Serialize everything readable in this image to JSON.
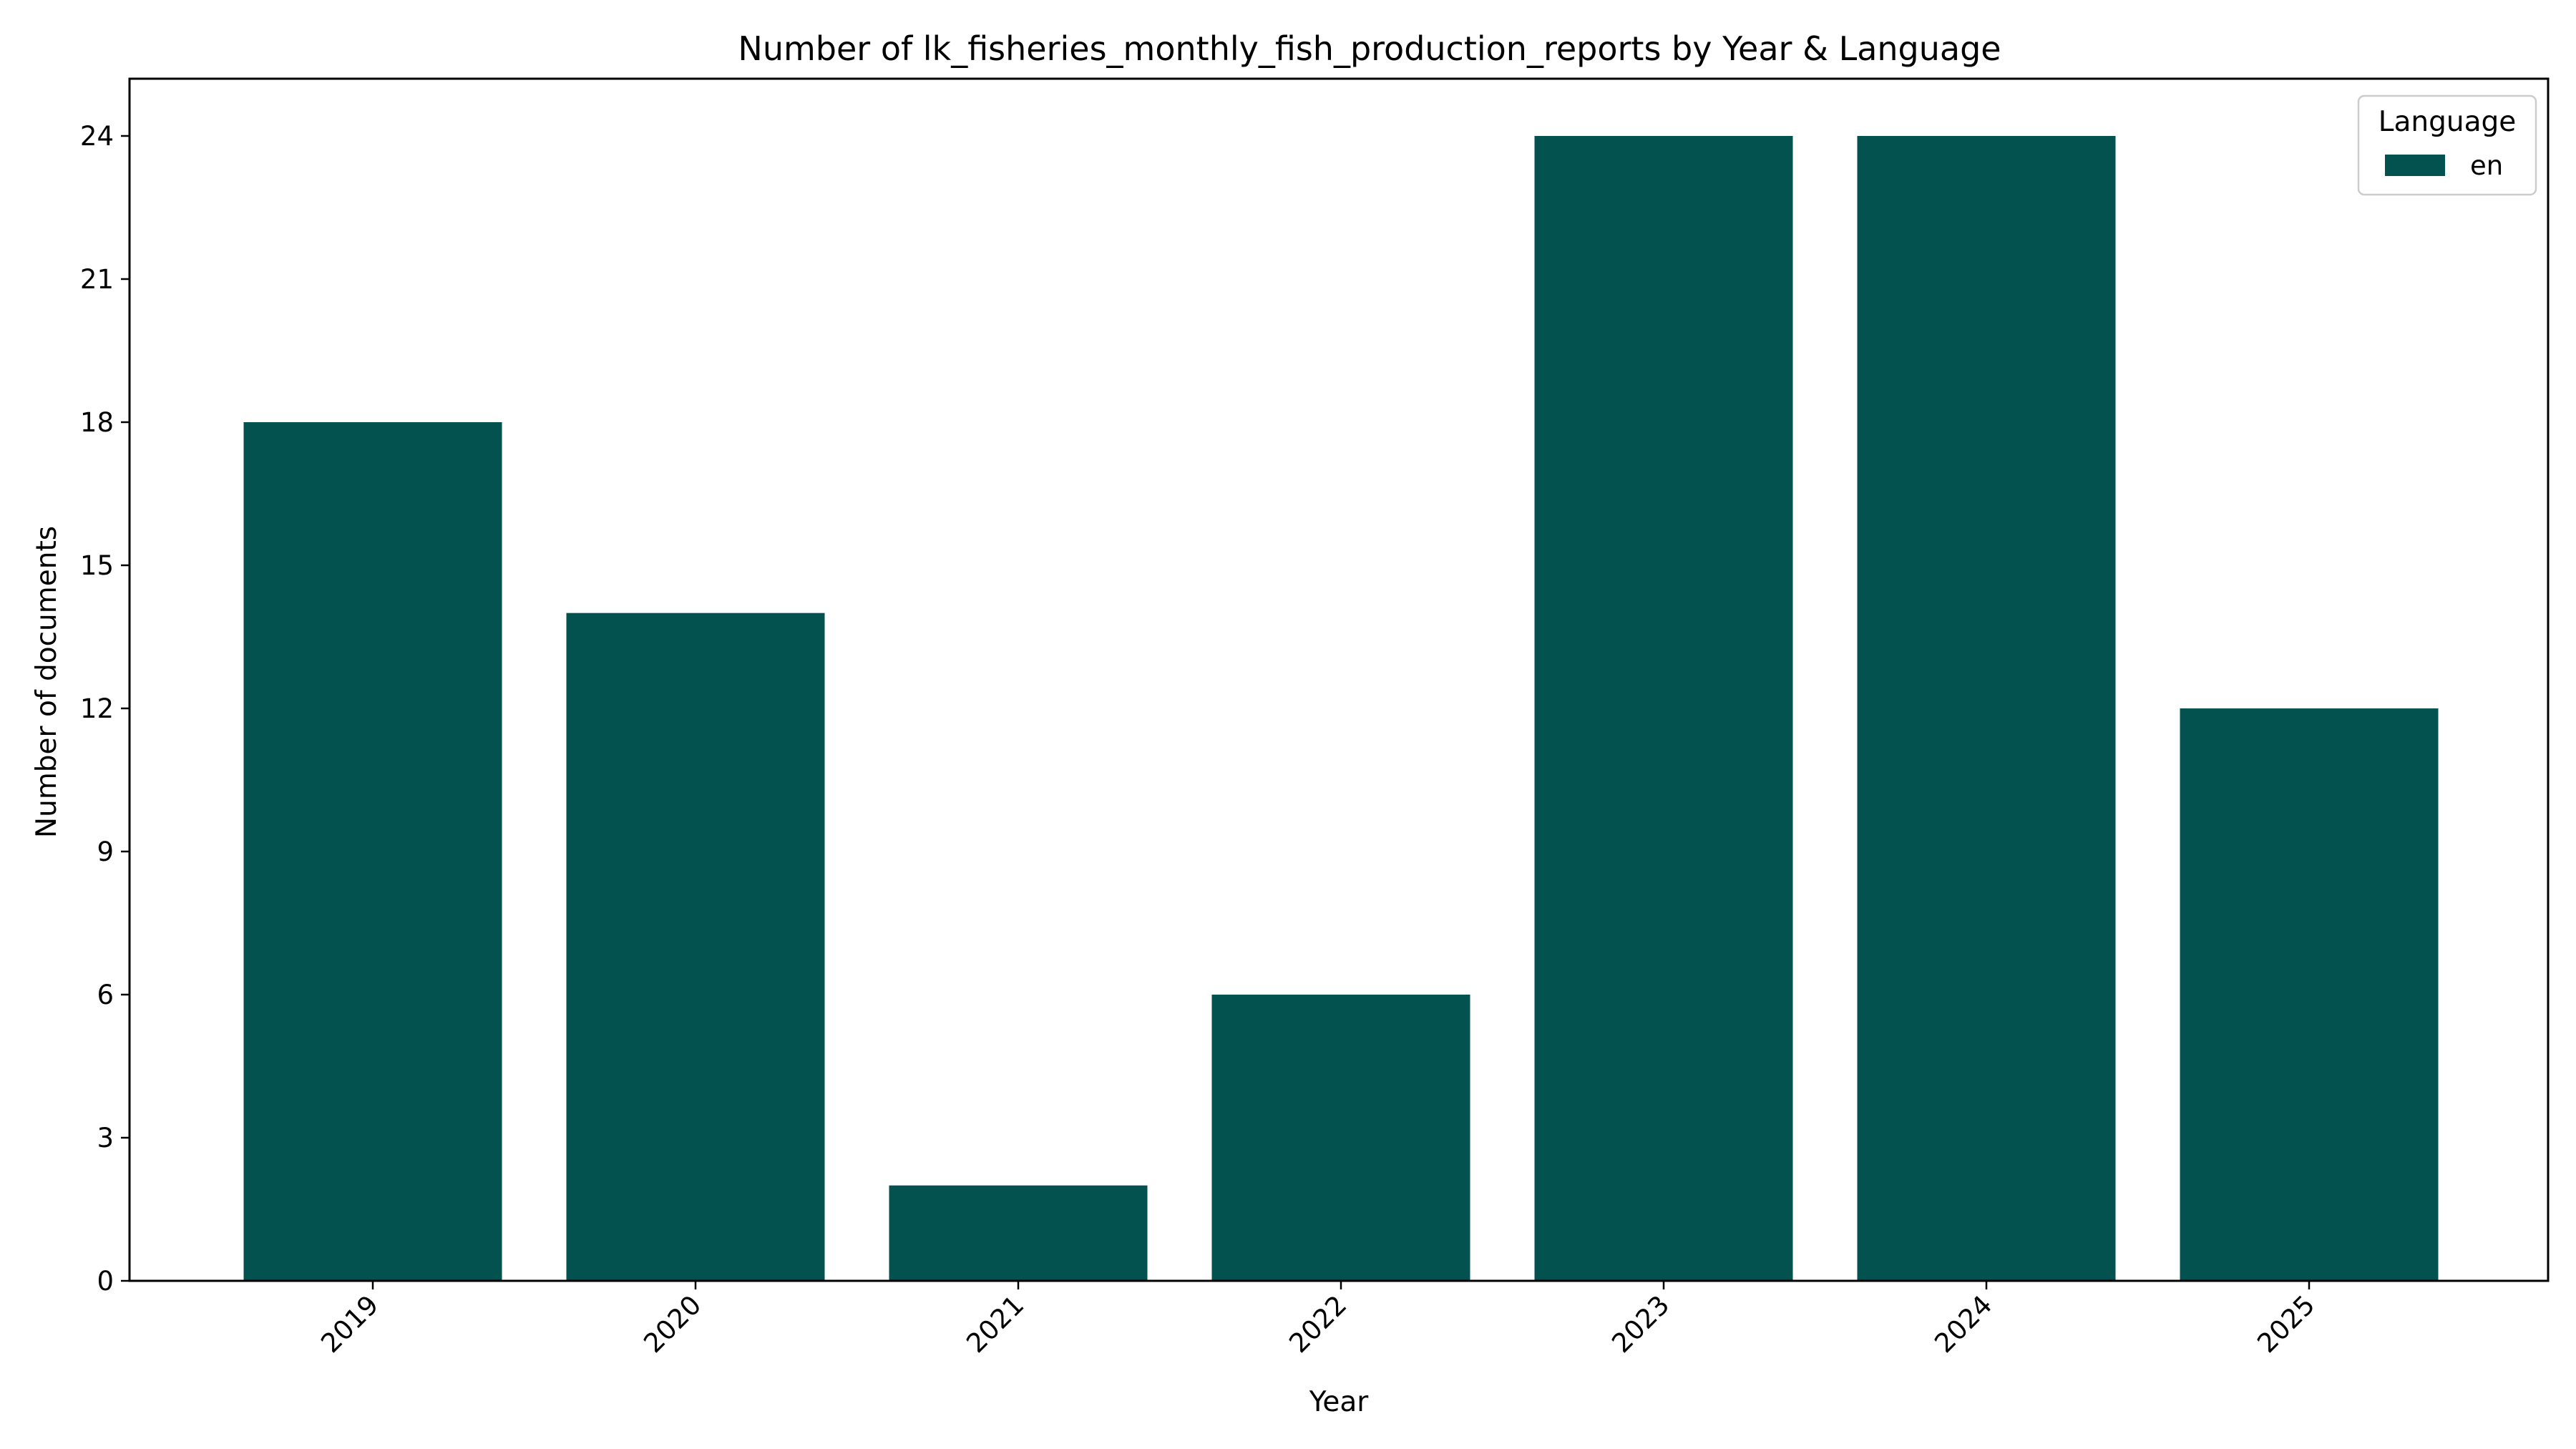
{
  "chart_data": {
    "type": "bar",
    "title": "Number of lk_fisheries_monthly_fish_production_reports by Year & Language",
    "xlabel": "Year",
    "ylabel": "Number of documents",
    "categories": [
      "2019",
      "2020",
      "2021",
      "2022",
      "2023",
      "2024",
      "2025"
    ],
    "series": [
      {
        "name": "en",
        "values": [
          18,
          14,
          2,
          6,
          24,
          24,
          12
        ],
        "color": "#03524f"
      }
    ],
    "ylim": [
      0,
      25.2
    ],
    "yticks": [
      0,
      3,
      6,
      9,
      12,
      15,
      18,
      21,
      24
    ],
    "x_tick_rotation_deg": 45,
    "grid": false,
    "legend": {
      "title": "Language",
      "placement": "top-right"
    }
  }
}
